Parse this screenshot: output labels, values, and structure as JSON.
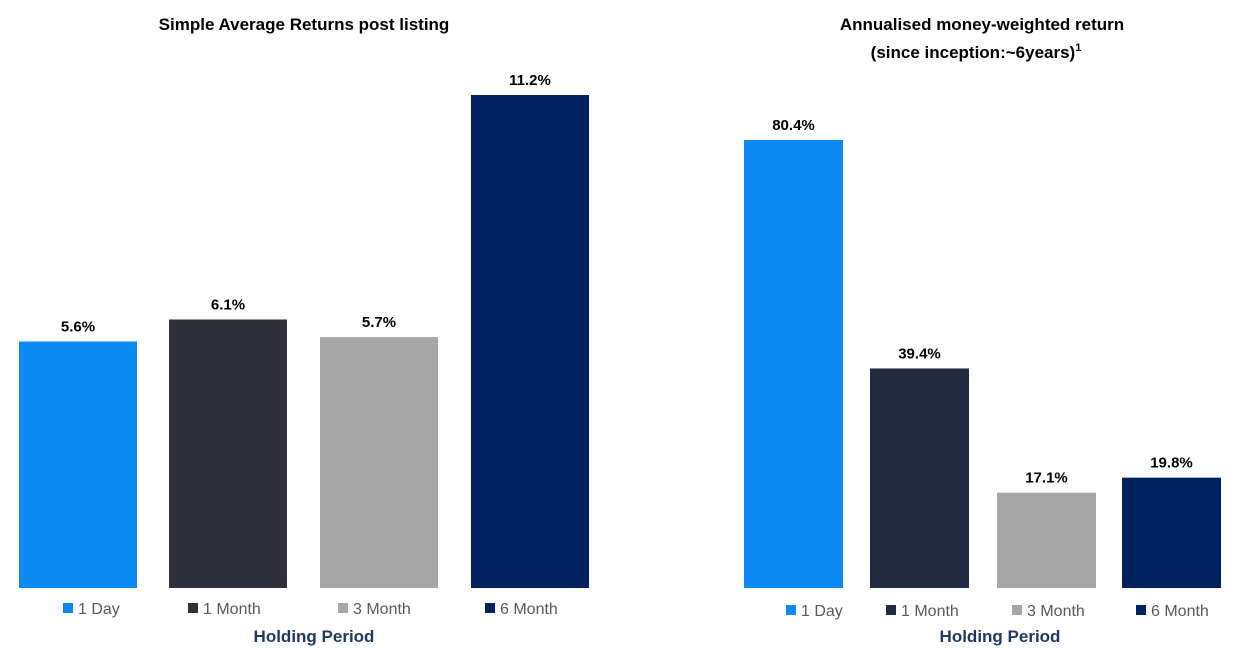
{
  "chart_data": [
    {
      "type": "bar",
      "title": "Simple Average Returns post listing",
      "xlabel": "Holding Period",
      "ylabel": "",
      "categories": [
        "1 Day",
        "1 Month",
        "3 Month",
        "6 Month"
      ],
      "values": [
        5.6,
        6.1,
        5.7,
        11.2
      ],
      "data_labels": [
        "5.6%",
        "6.1%",
        "5.7%",
        "11.2%"
      ],
      "colors": [
        "#0a8af2",
        "#2e2f3a",
        "#a6a6a6",
        "#00215e"
      ],
      "ylim": [
        0,
        11.2
      ],
      "grid": false,
      "legend": "bottom"
    },
    {
      "type": "bar",
      "title": "Annualised money-weighted return",
      "subtitle": "(since inception:~6years)",
      "subtitle_superscript": "1",
      "xlabel": "Holding Period",
      "ylabel": "",
      "categories": [
        "1 Day",
        "1 Month",
        "3 Month",
        "6 Month"
      ],
      "values": [
        80.4,
        39.4,
        17.1,
        19.8
      ],
      "data_labels": [
        "80.4%",
        "39.4%",
        "17.1%",
        "19.8%"
      ],
      "colors": [
        "#0a8af2",
        "#222a40",
        "#a6a6a6",
        "#00215e"
      ],
      "ylim": [
        0,
        80.4
      ],
      "grid": false,
      "legend": "bottom"
    }
  ]
}
